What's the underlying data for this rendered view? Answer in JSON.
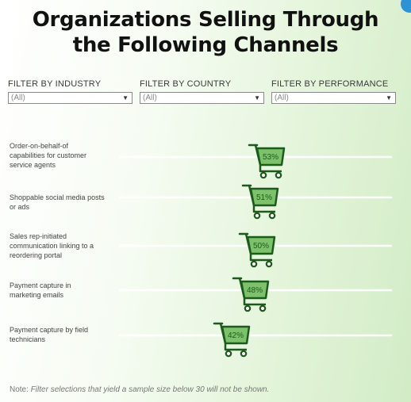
{
  "header": {
    "title_line1": "Organizations Selling Through",
    "title_line2": "the Following Channels"
  },
  "filters": [
    {
      "label": "FILTER BY INDUSTRY",
      "value": "(All)"
    },
    {
      "label": "FILTER BY COUNTRY",
      "value": "(All)"
    },
    {
      "label": "FILTER BY PERFORMANCE",
      "value": "(All)"
    }
  ],
  "note": {
    "prefix": "Note:",
    "text": "Filter selections that yield a sample size below 30 will not be shown."
  },
  "colors": {
    "cart_fill": "#7dc26a",
    "cart_stroke": "#1d5a1d",
    "track_line": "#ffffff"
  },
  "icons": [
    "shopping-cart-icon",
    "chevron-down-icon"
  ],
  "chart_data": {
    "type": "bar",
    "marker": "shopping-cart",
    "categories": [
      "Order-on-behalf-of capabilities for customer service agents",
      "Shoppable social media posts or ads",
      "Sales rep-initiated communication linking to a reordering portal",
      "Payment capture in marketing emails",
      "Payment capture by field technicians"
    ],
    "category_lines": [
      [
        "Order-on-behalf-of",
        "capabilities for customer",
        "service agents"
      ],
      [
        "Shoppable social media posts",
        "or ads"
      ],
      [
        "Sales rep-initiated",
        "communication linking to a",
        "reordering portal"
      ],
      [
        "Payment capture in",
        "marketing emails"
      ],
      [
        "Payment capture by field",
        "technicians"
      ]
    ],
    "values": [
      53,
      51,
      50,
      48,
      42
    ],
    "data_labels": [
      "53%",
      "51%",
      "50%",
      "48%",
      "42%"
    ],
    "unit": "%",
    "title": "Organizations Selling Through the Following Channels"
  }
}
